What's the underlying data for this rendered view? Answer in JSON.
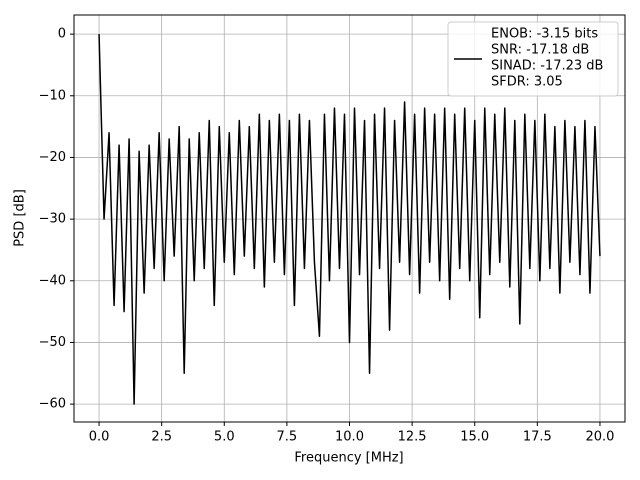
{
  "chart_data": {
    "type": "line",
    "xlabel": "Frequency [MHz]",
    "ylabel": "PSD [dB]",
    "x": [
      0,
      0.2,
      0.4,
      0.6,
      0.8,
      1,
      1.2,
      1.4,
      1.6,
      1.8,
      2,
      2.2,
      2.4,
      2.6,
      2.8,
      3,
      3.2,
      3.4,
      3.6,
      3.8,
      4,
      4.2,
      4.4,
      4.6,
      4.8,
      5,
      5.2,
      5.4,
      5.6,
      5.8,
      6,
      6.2,
      6.4,
      6.6,
      6.8,
      7,
      7.2,
      7.4,
      7.6,
      7.8,
      8,
      8.2,
      8.4,
      8.6,
      8.8,
      9,
      9.2,
      9.4,
      9.6,
      9.8,
      10,
      10.2,
      10.4,
      10.6,
      10.8,
      11,
      11.2,
      11.4,
      11.6,
      11.8,
      12,
      12.2,
      12.4,
      12.6,
      12.8,
      13,
      13.2,
      13.4,
      13.6,
      13.8,
      14,
      14.2,
      14.4,
      14.6,
      14.8,
      15,
      15.2,
      15.4,
      15.6,
      15.8,
      16,
      16.2,
      16.4,
      16.6,
      16.8,
      17,
      17.2,
      17.4,
      17.6,
      17.8,
      18,
      18.2,
      18.4,
      18.6,
      18.8,
      19,
      19.2,
      19.4,
      19.6,
      19.8,
      20
    ],
    "series": [
      {
        "name": [
          "ENOB: -3.15 bits",
          "SNR: -17.18 dB",
          "SINAD: -17.23 dB",
          "SFDR: 3.05"
        ],
        "color": "#000000",
        "values": [
          0,
          -30,
          -16,
          -44,
          -18,
          -45,
          -17,
          -60,
          -19,
          -42,
          -18,
          -38,
          -16,
          -40,
          -17,
          -36,
          -15,
          -55,
          -17,
          -40,
          -16,
          -38,
          -14,
          -44,
          -15,
          -37,
          -16,
          -39,
          -14,
          -36,
          -15,
          -38,
          -13,
          -41,
          -14,
          -37,
          -13,
          -39,
          -14,
          -44,
          -13,
          -38,
          -14,
          -37,
          -49,
          -13,
          -40,
          -12,
          -38,
          -13,
          -50,
          -12,
          -39,
          -14,
          -55,
          -13,
          -38,
          -12,
          -48,
          -14,
          -37,
          -11,
          -39,
          -13,
          -42,
          -12,
          -37,
          -13,
          -40,
          -12,
          -43,
          -13,
          -38,
          -12,
          -40,
          -14,
          -46,
          -12,
          -39,
          -13,
          -37,
          -12,
          -41,
          -14,
          -47,
          -13,
          -38,
          -14,
          -40,
          -13,
          -38,
          -15,
          -42,
          -14,
          -37,
          -15,
          -39,
          -14,
          -42,
          -15,
          -36
        ]
      }
    ],
    "xlim": [
      -1,
      21
    ],
    "xticks": [
      {
        "value": 0,
        "label": "0.0"
      },
      {
        "value": 2.5,
        "label": "2.5"
      },
      {
        "value": 5,
        "label": "5.0"
      },
      {
        "value": 7.5,
        "label": "7.5"
      },
      {
        "value": 10,
        "label": "10.0"
      },
      {
        "value": 12.5,
        "label": "12.5"
      },
      {
        "value": 15,
        "label": "15.0"
      },
      {
        "value": 17.5,
        "label": "17.5"
      },
      {
        "value": 20,
        "label": "20.0"
      }
    ],
    "ylim": [
      -62.9,
      3.1
    ],
    "yticks": [
      {
        "value": -60,
        "label": "−60"
      },
      {
        "value": -50,
        "label": "−50"
      },
      {
        "value": -40,
        "label": "−40"
      },
      {
        "value": -30,
        "label": "−30"
      },
      {
        "value": -20,
        "label": "−20"
      },
      {
        "value": -10,
        "label": "−10"
      },
      0
    ],
    "grid": true,
    "legend": "upper right"
  }
}
